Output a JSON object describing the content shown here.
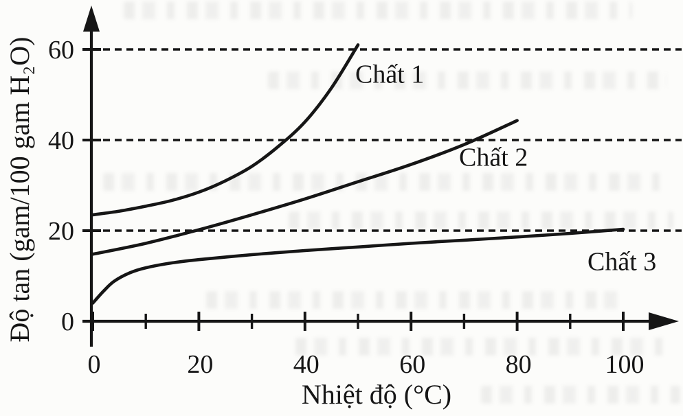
{
  "page": {
    "background": "#fcfcfa",
    "ink": "#161616"
  },
  "chart_data": {
    "type": "line",
    "title": "",
    "xlabel": "Nhiệt độ (°C)",
    "ylabel": "Độ tan (gam/100 gam H₂O)",
    "x_axis": {
      "min": 0,
      "max": 110,
      "major_ticks": [
        0,
        20,
        40,
        60,
        80,
        100
      ],
      "minor_ticks": [
        10,
        30,
        50,
        70,
        90
      ]
    },
    "y_axis": {
      "min": 0,
      "max": 68,
      "ticks": [
        0,
        20,
        40,
        60
      ]
    },
    "gridlines_y": [
      20,
      40,
      60
    ],
    "grid_style": "dashed",
    "legend_position": "inline-labels",
    "line_color": "#161616",
    "series": [
      {
        "name": "Chất 1",
        "points": [
          [
            0,
            23.5
          ],
          [
            5,
            24.3
          ],
          [
            10,
            25.4
          ],
          [
            15,
            26.7
          ],
          [
            20,
            28.5
          ],
          [
            25,
            31.0
          ],
          [
            30,
            34.2
          ],
          [
            35,
            38.6
          ],
          [
            40,
            44.0
          ],
          [
            45,
            51.5
          ],
          [
            50,
            61.0
          ]
        ]
      },
      {
        "name": "Chất 2",
        "points": [
          [
            0,
            14.8
          ],
          [
            10,
            17.2
          ],
          [
            20,
            20.2
          ],
          [
            30,
            23.5
          ],
          [
            40,
            27.0
          ],
          [
            50,
            30.8
          ],
          [
            60,
            34.6
          ],
          [
            70,
            39.0
          ],
          [
            80,
            44.3
          ]
        ]
      },
      {
        "name": "Chất 3",
        "points": [
          [
            0,
            4.0
          ],
          [
            2,
            6.6
          ],
          [
            4,
            8.8
          ],
          [
            7,
            10.7
          ],
          [
            10,
            11.8
          ],
          [
            15,
            12.9
          ],
          [
            20,
            13.6
          ],
          [
            30,
            14.7
          ],
          [
            40,
            15.6
          ],
          [
            50,
            16.4
          ],
          [
            60,
            17.2
          ],
          [
            70,
            17.9
          ],
          [
            80,
            18.6
          ],
          [
            90,
            19.4
          ],
          [
            100,
            20.3
          ]
        ]
      }
    ]
  }
}
